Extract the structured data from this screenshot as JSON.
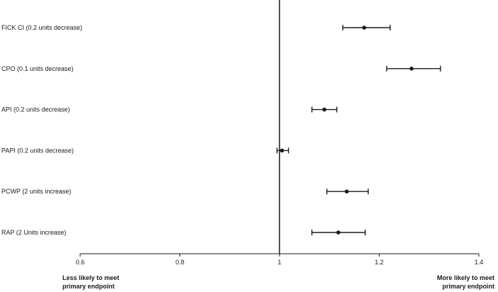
{
  "chart_data": {
    "type": "scatter",
    "subtype": "forest-plot",
    "title": "",
    "xlabel": "",
    "ylabel": "",
    "xlim": [
      0.6,
      1.4
    ],
    "x_ticks": [
      "0.6",
      "0.8",
      "1",
      "1.2",
      "1.4"
    ],
    "reference_line": 1,
    "grid": false,
    "categories": [
      "FICK CI (0.2 units decrease)",
      "CPO (0.1 units decrease)",
      "API (0.2 units decrease)",
      "PAPI (0.2 units decrease)",
      "PCWP (2 units increase)",
      "RAP (2 Units increase)"
    ],
    "estimates": [
      1.17,
      1.265,
      1.09,
      1.005,
      1.135,
      1.118
    ],
    "ci_lower": [
      1.127,
      1.215,
      1.065,
      0.995,
      1.095,
      1.065
    ],
    "ci_upper": [
      1.222,
      1.323,
      1.115,
      1.018,
      1.178,
      1.172
    ],
    "left_annotation": [
      "Less likely to meet",
      "primary endpoint"
    ],
    "right_annotation": [
      "More likely to meet",
      "primary endpoint"
    ],
    "colors": {
      "ink": "#1a1a1a"
    }
  }
}
